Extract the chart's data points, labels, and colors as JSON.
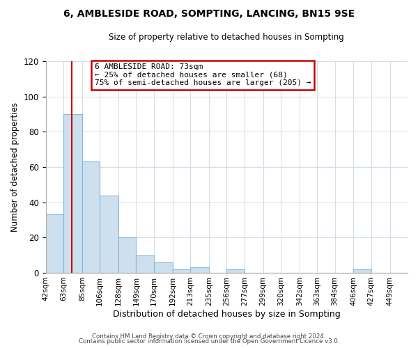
{
  "title": "6, AMBLESIDE ROAD, SOMPTING, LANCING, BN15 9SE",
  "subtitle": "Size of property relative to detached houses in Sompting",
  "xlabel": "Distribution of detached houses by size in Sompting",
  "ylabel": "Number of detached properties",
  "bin_edges": [
    42,
    63,
    85,
    106,
    128,
    149,
    170,
    192,
    213,
    235,
    256,
    277,
    299,
    320,
    342,
    363,
    384,
    406,
    427,
    449,
    470
  ],
  "bar_heights": [
    33,
    90,
    63,
    44,
    20,
    10,
    6,
    2,
    3,
    0,
    2,
    0,
    0,
    0,
    0,
    0,
    0,
    2,
    0,
    0
  ],
  "bar_color": "#cce0f0",
  "bar_edgecolor": "#89b8d4",
  "ylim": [
    0,
    120
  ],
  "yticks": [
    0,
    20,
    40,
    60,
    80,
    100,
    120
  ],
  "property_size": 73,
  "red_line_color": "#cc0000",
  "annotation_text_line1": "6 AMBLESIDE ROAD: 73sqm",
  "annotation_text_line2": "← 25% of detached houses are smaller (68)",
  "annotation_text_line3": "75% of semi-detached houses are larger (205) →",
  "annotation_box_color": "#cc0000",
  "footer_line1": "Contains HM Land Registry data © Crown copyright and database right 2024.",
  "footer_line2": "Contains public sector information licensed under the Open Government Licence v3.0.",
  "background_color": "#ffffff",
  "grid_color": "#d0dce8"
}
